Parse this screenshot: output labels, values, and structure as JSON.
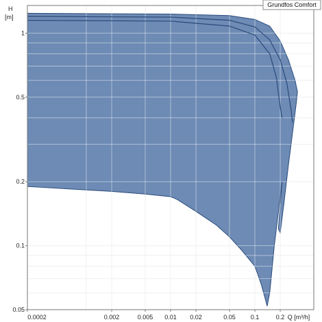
{
  "chart_data": {
    "type": "area",
    "x_scale": "log",
    "y_scale": "log",
    "xlim": [
      0.0002,
      0.5
    ],
    "ylim": [
      0.05,
      1.35
    ],
    "x_ticks": [
      0.0002,
      0.002,
      0.005,
      0.01,
      0.02,
      0.05,
      0.1,
      0.2
    ],
    "x_tick_labels": [
      "0.0002",
      "0.002",
      "0.005",
      "0.01",
      "0.02",
      "0.05",
      "0.1",
      "0.2"
    ],
    "y_ticks": [
      0.05,
      0.1,
      0.2,
      0.5,
      1
    ],
    "y_tick_labels": [
      "0.05",
      "0.1",
      "0.2",
      "0.5",
      "1"
    ],
    "x_grid": [
      0.0002,
      0.001,
      0.002,
      0.005,
      0.01,
      0.02,
      0.05,
      0.1,
      0.2,
      0.5
    ],
    "y_grid": [
      0.05,
      0.06,
      0.07,
      0.08,
      0.09,
      0.1,
      0.2,
      0.3,
      0.4,
      0.5,
      0.6,
      0.7,
      0.8,
      0.9,
      1
    ],
    "xlabel": "Q [m³/h]",
    "ylabel_line1": "H",
    "ylabel_line2": "[m]",
    "legend": "Grundfos Comfort",
    "legend_position": "top-right",
    "grid": true,
    "fill_color": "#6d8bb4",
    "edge_color": "#2a4a7c",
    "grid_color": "#e6e6e6",
    "envelope": [
      [
        0.0002,
        1.24
      ],
      [
        0.01,
        1.23
      ],
      [
        0.05,
        1.21
      ],
      [
        0.1,
        1.16
      ],
      [
        0.15,
        1.08
      ],
      [
        0.2,
        0.92
      ],
      [
        0.25,
        0.75
      ],
      [
        0.3,
        0.6
      ],
      [
        0.32,
        0.53
      ],
      [
        0.31,
        0.47
      ],
      [
        0.28,
        0.34
      ],
      [
        0.25,
        0.24
      ],
      [
        0.22,
        0.155
      ],
      [
        0.2,
        0.115
      ],
      [
        0.19,
        0.12
      ],
      [
        0.21,
        0.2
      ],
      [
        0.2,
        0.17
      ],
      [
        0.17,
        0.1
      ],
      [
        0.15,
        0.06
      ],
      [
        0.14,
        0.052
      ],
      [
        0.12,
        0.065
      ],
      [
        0.11,
        0.072
      ],
      [
        0.1,
        0.08
      ],
      [
        0.07,
        0.095
      ],
      [
        0.05,
        0.11
      ],
      [
        0.035,
        0.125
      ],
      [
        0.02,
        0.145
      ],
      [
        0.012,
        0.165
      ],
      [
        0.01,
        0.17
      ],
      [
        0.005,
        0.175
      ],
      [
        0.002,
        0.18
      ],
      [
        0.0002,
        0.19
      ]
    ],
    "series": [
      {
        "values": [
          [
            0.0002,
            1.2
          ],
          [
            0.01,
            1.19
          ],
          [
            0.05,
            1.15
          ],
          [
            0.1,
            1.07
          ],
          [
            0.15,
            0.93
          ],
          [
            0.2,
            0.75
          ],
          [
            0.24,
            0.58
          ],
          [
            0.27,
            0.43
          ],
          [
            0.28,
            0.38
          ]
        ]
      },
      {
        "values": [
          [
            0.0002,
            1.15
          ],
          [
            0.01,
            1.14
          ],
          [
            0.05,
            1.08
          ],
          [
            0.1,
            0.98
          ],
          [
            0.15,
            0.8
          ],
          [
            0.18,
            0.62
          ],
          [
            0.2,
            0.45
          ],
          [
            0.21,
            0.4
          ]
        ]
      }
    ]
  }
}
